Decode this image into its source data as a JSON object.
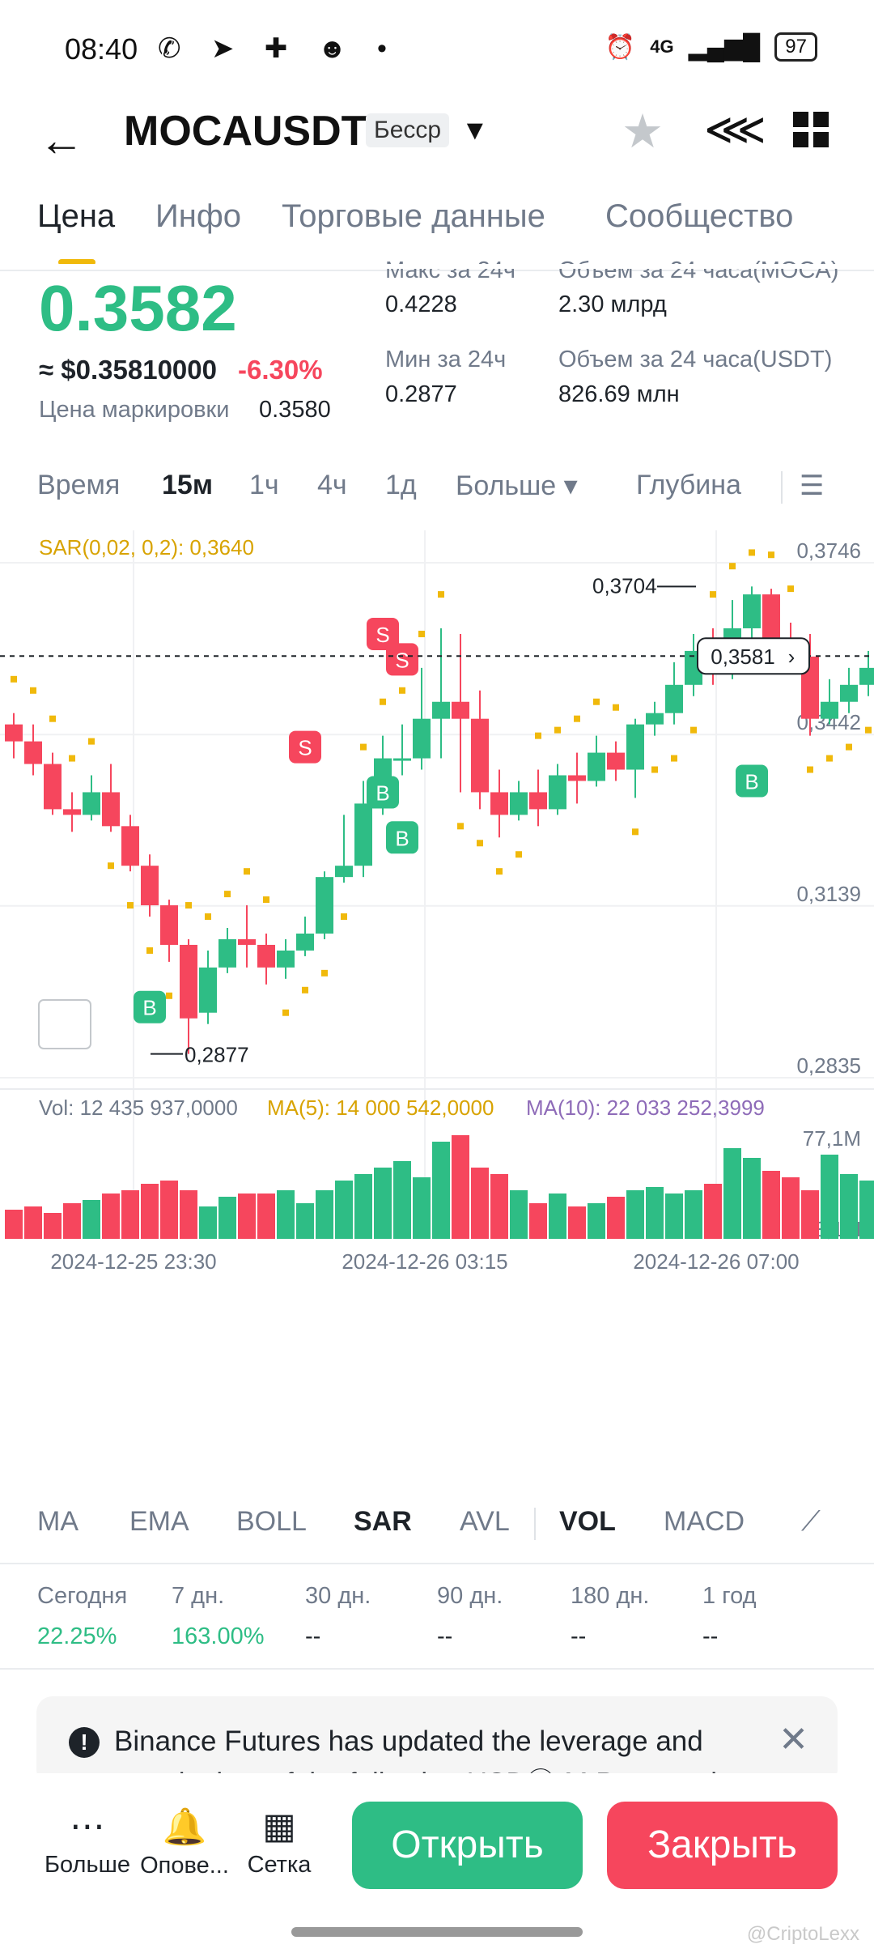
{
  "status": {
    "time": "08:40",
    "battery": "97",
    "signal": "4G"
  },
  "header": {
    "pair": "MOCAUSDT",
    "tag": "Бесср"
  },
  "tabs": [
    "Цена",
    "Инфо",
    "Торговые данные",
    "Сообщество"
  ],
  "price": {
    "last": "0.3582",
    "approx": "≈ $0.35810000",
    "change": "-6.30%",
    "mark_label": "Цена маркировки",
    "mark_value": "0.3580",
    "high_label": "Макс за 24ч",
    "high_value": "0.4228",
    "low_label": "Мин за 24ч",
    "low_value": "0.2877",
    "vol_base_label": "Объем за 24 часа(MOCA)",
    "vol_base_value": "2.30 млрд",
    "vol_quote_label": "Объем за 24 часа(USDT)",
    "vol_quote_value": "826.69 млн"
  },
  "timebar": [
    "Время",
    "15м",
    "1ч",
    "4ч",
    "1д",
    "Больше ▾",
    "Глубина"
  ],
  "chart_data": {
    "type": "candlestick",
    "sar_label": "SAR(0,02, 0,2): 0,3640",
    "y_ticks": [
      "0,3746",
      "0,3442",
      "0,3139",
      "0,2835"
    ],
    "y_range": [
      0.2835,
      0.3746
    ],
    "current_price": "0,3581",
    "high_marker": "0,3704",
    "low_marker": "0,2877",
    "x_ticks": [
      "2024-12-25 23:30",
      "2024-12-26 03:15",
      "2024-12-26 07:00"
    ],
    "candles": [
      [
        0.346,
        0.343,
        0.348,
        0.34
      ],
      [
        0.343,
        0.339,
        0.346,
        0.337
      ],
      [
        0.339,
        0.331,
        0.341,
        0.33
      ],
      [
        0.331,
        0.33,
        0.334,
        0.327
      ],
      [
        0.33,
        0.334,
        0.337,
        0.329
      ],
      [
        0.334,
        0.328,
        0.339,
        0.327
      ],
      [
        0.328,
        0.321,
        0.33,
        0.32
      ],
      [
        0.321,
        0.314,
        0.323,
        0.312
      ],
      [
        0.314,
        0.307,
        0.315,
        0.304
      ],
      [
        0.307,
        0.294,
        0.308,
        0.2877
      ],
      [
        0.295,
        0.303,
        0.306,
        0.293
      ],
      [
        0.303,
        0.308,
        0.31,
        0.302
      ],
      [
        0.308,
        0.307,
        0.314,
        0.303
      ],
      [
        0.307,
        0.303,
        0.309,
        0.3
      ],
      [
        0.303,
        0.306,
        0.308,
        0.301
      ],
      [
        0.306,
        0.309,
        0.312,
        0.305
      ],
      [
        0.309,
        0.319,
        0.32,
        0.308
      ],
      [
        0.319,
        0.321,
        0.33,
        0.318
      ],
      [
        0.321,
        0.332,
        0.336,
        0.319
      ],
      [
        0.332,
        0.34,
        0.344,
        0.33
      ],
      [
        0.34,
        0.34,
        0.346,
        0.337
      ],
      [
        0.34,
        0.347,
        0.356,
        0.338
      ],
      [
        0.347,
        0.35,
        0.363,
        0.34
      ],
      [
        0.35,
        0.347,
        0.362,
        0.334
      ],
      [
        0.347,
        0.334,
        0.352,
        0.331
      ],
      [
        0.334,
        0.33,
        0.338,
        0.326
      ],
      [
        0.33,
        0.334,
        0.336,
        0.329
      ],
      [
        0.334,
        0.331,
        0.338,
        0.328
      ],
      [
        0.331,
        0.337,
        0.339,
        0.33
      ],
      [
        0.337,
        0.336,
        0.341,
        0.332
      ],
      [
        0.336,
        0.341,
        0.344,
        0.335
      ],
      [
        0.341,
        0.338,
        0.343,
        0.336
      ],
      [
        0.338,
        0.346,
        0.347,
        0.333
      ],
      [
        0.346,
        0.348,
        0.35,
        0.344
      ],
      [
        0.348,
        0.353,
        0.357,
        0.346
      ],
      [
        0.353,
        0.359,
        0.362,
        0.351
      ],
      [
        0.359,
        0.355,
        0.363,
        0.353
      ],
      [
        0.355,
        0.363,
        0.368,
        0.354
      ],
      [
        0.363,
        0.369,
        0.3704,
        0.361
      ],
      [
        0.369,
        0.36,
        0.37,
        0.358
      ],
      [
        0.36,
        0.358,
        0.364,
        0.356
      ],
      [
        0.358,
        0.347,
        0.362,
        0.344
      ],
      [
        0.347,
        0.35,
        0.354,
        0.346
      ],
      [
        0.35,
        0.353,
        0.356,
        0.348
      ],
      [
        0.353,
        0.356,
        0.359,
        0.351
      ],
      [
        0.356,
        0.359,
        0.361,
        0.354
      ],
      [
        0.359,
        0.362,
        0.365,
        0.357
      ],
      [
        0.356,
        0.358,
        0.363,
        0.354
      ]
    ],
    "vol_label": "Vol: 12 435 937,0000",
    "ma5_label": "MA(5): 14 000 542,0000",
    "ma10_label": "MA(10): 22 033 252,3999",
    "vol_ticks": [
      "77,1M",
      "3,1M"
    ],
    "signals_s": [
      {
        "i": 15,
        "p": 0.342
      },
      {
        "i": 19,
        "p": 0.362
      },
      {
        "i": 20,
        "p": 0.3575
      }
    ],
    "signals_b": [
      {
        "i": 7,
        "p": 0.296
      },
      {
        "i": 19,
        "p": 0.334
      },
      {
        "i": 20,
        "p": 0.326
      },
      {
        "i": 38,
        "p": 0.336
      }
    ]
  },
  "indicators": [
    "MA",
    "EMA",
    "BOLL",
    "SAR",
    "AVL",
    "VOL",
    "MACD"
  ],
  "performance": [
    {
      "label": "Сегодня",
      "value": "22.25%"
    },
    {
      "label": "7 дн.",
      "value": "163.00%"
    },
    {
      "label": "30 дн.",
      "value": "--"
    },
    {
      "label": "90 дн.",
      "value": "--"
    },
    {
      "label": "180 дн.",
      "value": "--"
    },
    {
      "label": "1 год",
      "value": "--"
    }
  ],
  "notice": "Binance Futures has updated the leverage and margin tiers of the following USDⓈ-M Perpetual",
  "bottom": {
    "more": "Больше",
    "alerts": "Опове...",
    "grid": "Сетка",
    "open": "Открыть",
    "close": "Закрыть"
  },
  "watermark": "@CriptoLexx",
  "colors": {
    "up": "#2ebd85",
    "down": "#f6465d",
    "accent": "#f0b90b"
  }
}
